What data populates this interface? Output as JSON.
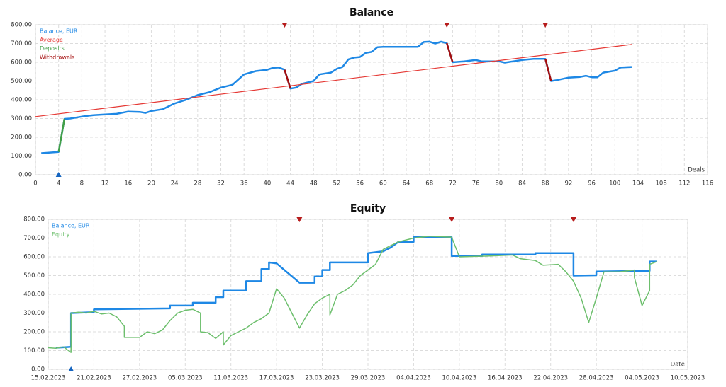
{
  "chart_data": [
    {
      "type": "line",
      "title": "Balance",
      "xlabel": "Deals",
      "legend": "upper left",
      "grid": true,
      "xlim": [
        0,
        116
      ],
      "xticks": [
        0,
        4,
        8,
        12,
        16,
        20,
        24,
        28,
        32,
        36,
        40,
        44,
        48,
        52,
        56,
        60,
        64,
        68,
        72,
        76,
        80,
        84,
        88,
        92,
        96,
        100,
        104,
        108,
        112,
        116
      ],
      "ylim": [
        0,
        800
      ],
      "yticks": [
        {
          "value": 0,
          "label": "0.00"
        },
        {
          "value": 100,
          "label": "100.00"
        },
        {
          "value": 200,
          "label": "200.00"
        },
        {
          "value": 300,
          "label": "300.00"
        },
        {
          "value": 400,
          "label": "400.00"
        },
        {
          "value": 500,
          "label": "500.00"
        },
        {
          "value": 600,
          "label": "600.00"
        },
        {
          "value": 700,
          "label": "700.00"
        },
        {
          "value": 800,
          "label": "800.00"
        }
      ],
      "series": [
        {
          "name": "Balance, EUR",
          "color": "#1e88e5",
          "width": 2.5,
          "x": [
            1,
            4,
            5,
            6,
            8,
            10,
            12,
            14,
            16,
            18,
            19,
            20,
            22,
            24,
            26,
            28,
            30,
            32,
            34,
            36,
            38,
            40,
            41,
            42,
            43,
            44,
            45,
            46,
            48,
            49,
            51,
            52,
            53,
            54,
            55,
            56,
            57,
            58,
            59,
            60,
            66,
            67,
            68,
            69,
            70,
            71,
            72,
            74,
            76,
            77,
            80,
            81,
            84,
            86,
            88,
            89,
            90,
            92,
            94,
            95,
            96,
            97,
            98,
            100,
            101,
            103
          ],
          "values": [
            115,
            122,
            298,
            300,
            310,
            318,
            322,
            325,
            337,
            335,
            330,
            340,
            350,
            380,
            400,
            425,
            440,
            465,
            480,
            535,
            553,
            560,
            570,
            572,
            560,
            460,
            465,
            485,
            500,
            535,
            545,
            565,
            575,
            615,
            625,
            628,
            650,
            655,
            680,
            682,
            682,
            708,
            710,
            700,
            710,
            702,
            600,
            605,
            612,
            605,
            605,
            598,
            612,
            618,
            618,
            500,
            505,
            518,
            522,
            528,
            520,
            520,
            545,
            555,
            572,
            575
          ]
        },
        {
          "name": "Average",
          "color": "#e53935",
          "width": 1.2,
          "x": [
            0,
            103
          ],
          "values": [
            310,
            695
          ]
        },
        {
          "name": "Deposits",
          "color": "#43a047",
          "width": 2.5,
          "x": [
            4,
            5
          ],
          "values": [
            122,
            298
          ]
        },
        {
          "name": "Withdrawals",
          "color": "#a50e0e",
          "width": 2.5,
          "x": [
            43,
            44,
            null,
            71,
            72,
            null,
            88,
            89
          ],
          "values": [
            560,
            460,
            null,
            702,
            600,
            null,
            618,
            500
          ]
        }
      ],
      "markers": {
        "deposits": {
          "x": [
            4
          ],
          "color": "#1565c0"
        },
        "withdrawals": {
          "x": [
            43,
            71,
            88
          ],
          "color": "#b71c1c"
        }
      }
    },
    {
      "type": "line",
      "title": "Equity",
      "xlabel": "Date",
      "legend": "upper left",
      "grid": true,
      "xlim": [
        "15.02.2023",
        "10.05.2023"
      ],
      "xticks": [
        "15.02.2023",
        "21.02.2023",
        "27.02.2023",
        "05.03.2023",
        "11.03.2023",
        "17.03.2023",
        "23.03.2023",
        "29.03.2023",
        "04.04.2023",
        "10.04.2023",
        "16.04.2023",
        "22.04.2023",
        "28.04.2023",
        "04.05.2023",
        "10.05.2023"
      ],
      "ylim": [
        0,
        800
      ],
      "yticks": [
        {
          "value": 0,
          "label": "0.00"
        },
        {
          "value": 100,
          "label": "100.00"
        },
        {
          "value": 200,
          "label": "200.00"
        },
        {
          "value": 300,
          "label": "300.00"
        },
        {
          "value": 400,
          "label": "400.00"
        },
        {
          "value": 500,
          "label": "500.00"
        },
        {
          "value": 600,
          "label": "600.00"
        },
        {
          "value": 700,
          "label": "700.00"
        },
        {
          "value": 800,
          "label": "800.00"
        }
      ],
      "series": [
        {
          "name": "Balance, EUR",
          "color": "#1e88e5",
          "width": 2.5,
          "x": [
            "16.02.2023",
            "18.02.2023",
            "18.02.2023",
            "21.02.2023",
            "21.02.2023",
            "03.03.2023",
            "03.03.2023",
            "06.03.2023",
            "06.03.2023",
            "09.03.2023",
            "09.03.2023",
            "10.03.2023",
            "10.03.2023",
            "13.03.2023",
            "13.03.2023",
            "15.03.2023",
            "15.03.2023",
            "16.03.2023",
            "16.03.2023",
            "17.03.2023",
            "20.03.2023",
            "22.03.2023",
            "22.03.2023",
            "23.03.2023",
            "23.03.2023",
            "24.03.2023",
            "24.03.2023",
            "29.03.2023",
            "29.03.2023",
            "31.03.2023",
            "01.04.2023",
            "02.04.2023",
            "04.04.2023",
            "04.04.2023",
            "09.04.2023",
            "09.04.2023",
            "13.04.2023",
            "13.04.2023",
            "20.04.2023",
            "20.04.2023",
            "25.04.2023",
            "25.04.2023",
            "28.04.2023",
            "28.04.2023",
            "05.05.2023",
            "05.05.2023",
            "06.05.2023"
          ],
          "values": [
            115,
            120,
            300,
            305,
            320,
            325,
            340,
            340,
            355,
            355,
            385,
            385,
            420,
            420,
            470,
            470,
            535,
            535,
            570,
            565,
            462,
            462,
            495,
            495,
            530,
            530,
            570,
            570,
            620,
            630,
            650,
            680,
            680,
            705,
            705,
            605,
            605,
            612,
            612,
            620,
            620,
            500,
            502,
            522,
            525,
            575,
            575
          ]
        },
        {
          "name": "Equity",
          "color": "#6dbf6d",
          "width": 1.5,
          "x": [
            "15.02.2023",
            "16.02.2023",
            "17.02.2023",
            "18.02.2023",
            "18.02.2023",
            "19.02.2023",
            "20.02.2023",
            "21.02.2023",
            "22.02.2023",
            "23.02.2023",
            "24.02.2023",
            "25.02.2023",
            "25.02.2023",
            "26.02.2023",
            "27.02.2023",
            "28.02.2023",
            "01.03.2023",
            "02.03.2023",
            "03.03.2023",
            "04.03.2023",
            "05.03.2023",
            "06.03.2023",
            "07.03.2023",
            "07.03.2023",
            "08.03.2023",
            "09.03.2023",
            "10.03.2023",
            "10.03.2023",
            "11.03.2023",
            "12.03.2023",
            "13.03.2023",
            "14.03.2023",
            "15.03.2023",
            "16.03.2023",
            "17.03.2023",
            "18.03.2023",
            "19.03.2023",
            "20.03.2023",
            "21.03.2023",
            "22.03.2023",
            "23.03.2023",
            "24.03.2023",
            "24.03.2023",
            "25.03.2023",
            "26.03.2023",
            "27.03.2023",
            "28.03.2023",
            "29.03.2023",
            "30.03.2023",
            "31.03.2023",
            "01.04.2023",
            "02.04.2023",
            "03.04.2023",
            "04.04.2023",
            "06.04.2023",
            "09.04.2023",
            "10.04.2023",
            "14.04.2023",
            "17.04.2023",
            "18.04.2023",
            "20.04.2023",
            "21.04.2023",
            "23.04.2023",
            "24.04.2023",
            "25.04.2023",
            "26.04.2023",
            "27.04.2023",
            "28.04.2023",
            "29.04.2023",
            "01.05.2023",
            "03.05.2023",
            "03.05.2023",
            "04.05.2023",
            "05.05.2023",
            "05.05.2023",
            "06.05.2023"
          ],
          "values": [
            115,
            112,
            120,
            90,
            300,
            305,
            300,
            310,
            295,
            300,
            280,
            230,
            170,
            170,
            170,
            200,
            190,
            210,
            260,
            300,
            315,
            320,
            300,
            200,
            195,
            165,
            200,
            130,
            180,
            200,
            220,
            250,
            270,
            300,
            430,
            380,
            300,
            220,
            290,
            350,
            380,
            400,
            290,
            400,
            420,
            450,
            500,
            530,
            560,
            640,
            660,
            680,
            690,
            700,
            710,
            705,
            600,
            605,
            610,
            590,
            580,
            555,
            560,
            520,
            470,
            380,
            250,
            380,
            520,
            520,
            530,
            490,
            340,
            420,
            560,
            575
          ]
        }
      ],
      "markers": {
        "deposits": {
          "x": [
            "18.02.2023"
          ],
          "color": "#1565c0"
        },
        "withdrawals": {
          "x": [
            "20.03.2023",
            "09.04.2023",
            "25.04.2023"
          ],
          "color": "#b71c1c"
        }
      }
    }
  ]
}
